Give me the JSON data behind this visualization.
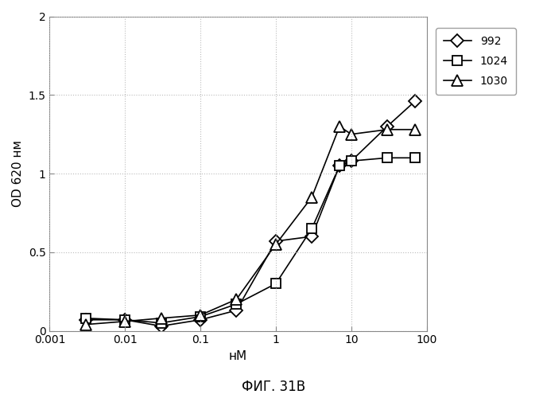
{
  "series": [
    {
      "label": "992",
      "marker": "D",
      "x": [
        0.003,
        0.01,
        0.03,
        0.1,
        0.3,
        1,
        3,
        7,
        10,
        30,
        70
      ],
      "y": [
        0.07,
        0.07,
        0.03,
        0.07,
        0.13,
        0.57,
        0.6,
        1.05,
        1.08,
        1.3,
        1.46
      ]
    },
    {
      "label": "1024",
      "marker": "s",
      "x": [
        0.003,
        0.01,
        0.03,
        0.1,
        0.3,
        1,
        3,
        7,
        10,
        30,
        70
      ],
      "y": [
        0.08,
        0.07,
        0.05,
        0.09,
        0.17,
        0.3,
        0.65,
        1.05,
        1.08,
        1.1,
        1.1
      ]
    },
    {
      "label": "1030",
      "marker": "^",
      "x": [
        0.003,
        0.01,
        0.03,
        0.1,
        0.3,
        1,
        3,
        7,
        10,
        30,
        70
      ],
      "y": [
        0.04,
        0.06,
        0.08,
        0.1,
        0.2,
        0.55,
        0.85,
        1.3,
        1.25,
        1.28,
        1.28
      ]
    }
  ],
  "xlabel": "нМ",
  "ylabel": "OD 620 нм",
  "ylim": [
    0,
    2
  ],
  "xlim": [
    0.001,
    100
  ],
  "yticks": [
    0,
    0.5,
    1.0,
    1.5,
    2.0
  ],
  "ytick_labels": [
    "0",
    "0.5",
    "1",
    "1.5",
    "2"
  ],
  "xticks": [
    0.001,
    0.01,
    0.1,
    1,
    10,
    100
  ],
  "xtick_labels": [
    "0.001",
    "0.01",
    "0.1",
    "1",
    "10",
    "100"
  ],
  "caption": "ФИГ. 31В",
  "line_color": "#000000",
  "bg_color": "#ffffff",
  "grid_color": "#bbbbbb",
  "figsize": [
    6.88,
    5.0
  ],
  "dpi": 100
}
